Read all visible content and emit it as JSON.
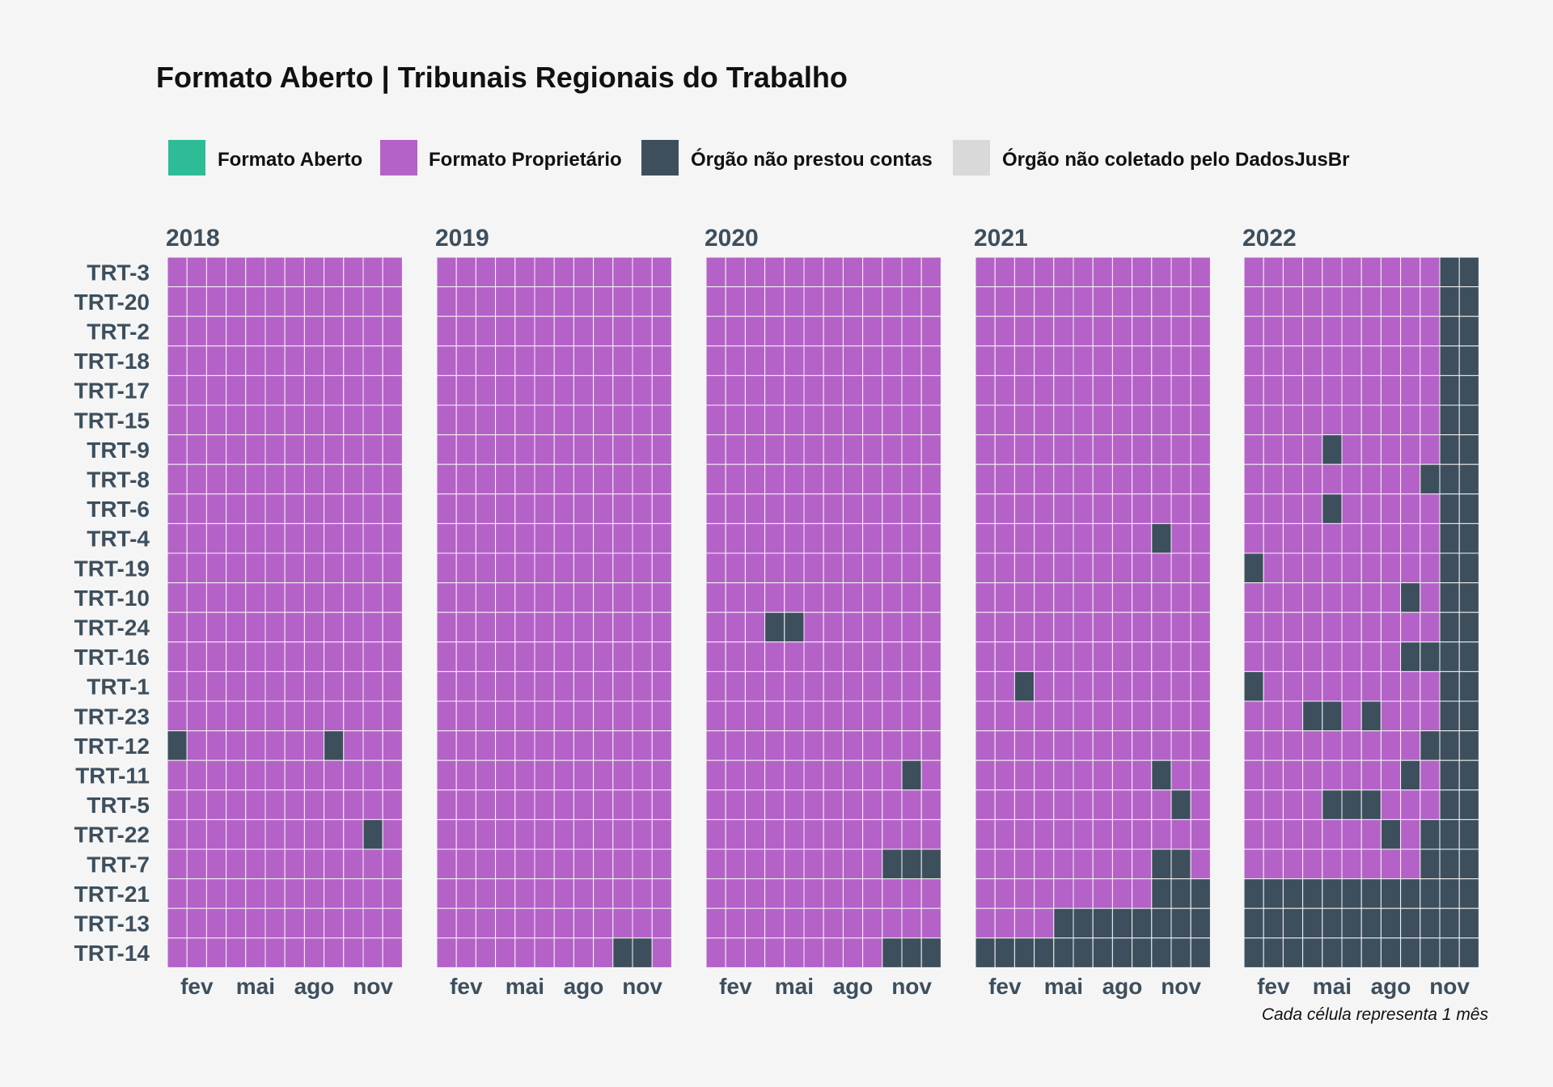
{
  "chart_data": {
    "type": "heatmap",
    "title": "Formato Aberto | Tribunais Regionais do Trabalho",
    "caption": "Cada célula representa 1 mês",
    "legend": {
      "placement": "top",
      "entries": [
        {
          "key": "A",
          "label": "Formato Aberto",
          "color": "#2ebc97"
        },
        {
          "key": "P",
          "label": "Formato Proprietário",
          "color": "#b462c8"
        },
        {
          "key": "N",
          "label": "Órgão não prestou contas",
          "color": "#3d4f5d"
        },
        {
          "key": "X",
          "label": "Órgão não coletado pelo DadosJusBr",
          "color": "#d9d9d9"
        }
      ]
    },
    "years": [
      "2018",
      "2019",
      "2020",
      "2021",
      "2022"
    ],
    "month_ticks": [
      {
        "month": 2,
        "label": "fev"
      },
      {
        "month": 5,
        "label": "mai"
      },
      {
        "month": 8,
        "label": "ago"
      },
      {
        "month": 11,
        "label": "nov"
      }
    ],
    "rows": [
      "TRT-3",
      "TRT-20",
      "TRT-2",
      "TRT-18",
      "TRT-17",
      "TRT-15",
      "TRT-9",
      "TRT-8",
      "TRT-6",
      "TRT-4",
      "TRT-19",
      "TRT-10",
      "TRT-24",
      "TRT-16",
      "TRT-1",
      "TRT-23",
      "TRT-12",
      "TRT-11",
      "TRT-5",
      "TRT-22",
      "TRT-7",
      "TRT-21",
      "TRT-13",
      "TRT-14"
    ],
    "grid": {
      "2018": {
        "TRT-3": "PPPPPPPPPPPP",
        "TRT-20": "PPPPPPPPPPPP",
        "TRT-2": "PPPPPPPPPPPP",
        "TRT-18": "PPPPPPPPPPPP",
        "TRT-17": "PPPPPPPPPPPP",
        "TRT-15": "PPPPPPPPPPPP",
        "TRT-9": "PPPPPPPPPPPP",
        "TRT-8": "PPPPPPPPPPPP",
        "TRT-6": "PPPPPPPPPPPP",
        "TRT-4": "PPPPPPPPPPPP",
        "TRT-19": "PPPPPPPPPPPP",
        "TRT-10": "PPPPPPPPPPPP",
        "TRT-24": "PPPPPPPPPPPP",
        "TRT-16": "PPPPPPPPPPPP",
        "TRT-1": "PPPPPPPPPPPP",
        "TRT-23": "PPPPPPPPPPPP",
        "TRT-12": "NPPPPPPPNPPP",
        "TRT-11": "PPPPPPPPPPPP",
        "TRT-5": "PPPPPPPPPPPP",
        "TRT-22": "PPPPPPPPPPNP",
        "TRT-7": "PPPPPPPPPPPP",
        "TRT-21": "PPPPPPPPPPPP",
        "TRT-13": "PPPPPPPPPPPP",
        "TRT-14": "PPPPPPPPPPPP"
      },
      "2019": {
        "TRT-3": "PPPPPPPPPPPP",
        "TRT-20": "PPPPPPPPPPPP",
        "TRT-2": "PPPPPPPPPPPP",
        "TRT-18": "PPPPPPPPPPPP",
        "TRT-17": "PPPPPPPPPPPP",
        "TRT-15": "PPPPPPPPPPPP",
        "TRT-9": "PPPPPPPPPPPP",
        "TRT-8": "PPPPPPPPPPPP",
        "TRT-6": "PPPPPPPPPPPP",
        "TRT-4": "PPPPPPPPPPPP",
        "TRT-19": "PPPPPPPPPPPP",
        "TRT-10": "PPPPPPPPPPPP",
        "TRT-24": "PPPPPPPPPPPP",
        "TRT-16": "PPPPPPPPPPPP",
        "TRT-1": "PPPPPPPPPPPP",
        "TRT-23": "PPPPPPPPPPPP",
        "TRT-12": "PPPPPPPPPPPP",
        "TRT-11": "PPPPPPPPPPPP",
        "TRT-5": "PPPPPPPPPPPP",
        "TRT-22": "PPPPPPPPPPPP",
        "TRT-7": "PPPPPPPPPPPP",
        "TRT-21": "PPPPPPPPPPPP",
        "TRT-13": "PPPPPPPPPPPP",
        "TRT-14": "PPPPPPPPPNNP"
      },
      "2020": {
        "TRT-3": "PPPPPPPPPPPP",
        "TRT-20": "PPPPPPPPPPPP",
        "TRT-2": "PPPPPPPPPPPP",
        "TRT-18": "PPPPPPPPPPPP",
        "TRT-17": "PPPPPPPPPPPP",
        "TRT-15": "PPPPPPPPPPPP",
        "TRT-9": "PPPPPPPPPPPP",
        "TRT-8": "PPPPPPPPPPPP",
        "TRT-6": "PPPPPPPPPPPP",
        "TRT-4": "PPPPPPPPPPPP",
        "TRT-19": "PPPPPPPPPPPP",
        "TRT-10": "PPPPPPPPPPPP",
        "TRT-24": "PPPNNPPPPPPP",
        "TRT-16": "PPPPPPPPPPPP",
        "TRT-1": "PPPPPPPPPPPP",
        "TRT-23": "PPPPPPPPPPPP",
        "TRT-12": "PPPPPPPPPPPP",
        "TRT-11": "PPPPPPPPPPNP",
        "TRT-5": "PPPPPPPPPPPP",
        "TRT-22": "PPPPPPPPPPPP",
        "TRT-7": "PPPPPPPPPNNN",
        "TRT-21": "PPPPPPPPPPPP",
        "TRT-13": "PPPPPPPPPPPP",
        "TRT-14": "PPPPPPPPPNNN"
      },
      "2021": {
        "TRT-3": "PPPPPPPPPPPP",
        "TRT-20": "PPPPPPPPPPPP",
        "TRT-2": "PPPPPPPPPPPP",
        "TRT-18": "PPPPPPPPPPPP",
        "TRT-17": "PPPPPPPPPPPP",
        "TRT-15": "PPPPPPPPPPPP",
        "TRT-9": "PPPPPPPPPPPP",
        "TRT-8": "PPPPPPPPPPPP",
        "TRT-6": "PPPPPPPPPPPP",
        "TRT-4": "PPPPPPPPPNPP",
        "TRT-19": "PPPPPPPPPPPP",
        "TRT-10": "PPPPPPPPPPPP",
        "TRT-24": "PPPPPPPPPPPP",
        "TRT-16": "PPPPPPPPPPPP",
        "TRT-1": "PPNPPPPPPPPP",
        "TRT-23": "PPPPPPPPPPPP",
        "TRT-12": "PPPPPPPPPPPP",
        "TRT-11": "PPPPPPPPPNPP",
        "TRT-5": "PPPPPPPPPPNP",
        "TRT-22": "PPPPPPPPPPPP",
        "TRT-7": "PPPPPPPPPNNP",
        "TRT-21": "PPPPPPPPPNNN",
        "TRT-13": "PPPPNNNNNNNN",
        "TRT-14": "NNNNNNNNNNNN"
      },
      "2022": {
        "TRT-3": "PPPPPPPPPPNN",
        "TRT-20": "PPPPPPPPPPNN",
        "TRT-2": "PPPPPPPPPPNN",
        "TRT-18": "PPPPPPPPPPNN",
        "TRT-17": "PPPPPPPPPPNN",
        "TRT-15": "PPPPPPPPPPNN",
        "TRT-9": "PPPPNPPPPPNN",
        "TRT-8": "PPPPPPPPPNNN",
        "TRT-6": "PPPPNPPPPPNN",
        "TRT-4": "PPPPPPPPPPNN",
        "TRT-19": "NPPPPPPPPPNN",
        "TRT-10": "PPPPPPPPNPNN",
        "TRT-24": "PPPPPPPPPPNN",
        "TRT-16": "PPPPPPPPNNNN",
        "TRT-1": "NPPPPPPPPPNN",
        "TRT-23": "PPPNNPNPPPNN",
        "TRT-12": "PPPPPPPPPNNN",
        "TRT-11": "PPPPPPPPNPNN",
        "TRT-5": "PPPPNNNPPPNN",
        "TRT-22": "PPPPPPPNPNNN",
        "TRT-7": "PPPPPPPPPNNN",
        "TRT-21": "NNNNNNNNNNNN",
        "TRT-13": "NNNNNNNNNNNN",
        "TRT-14": "NNNNNNNNNNNN"
      }
    }
  }
}
